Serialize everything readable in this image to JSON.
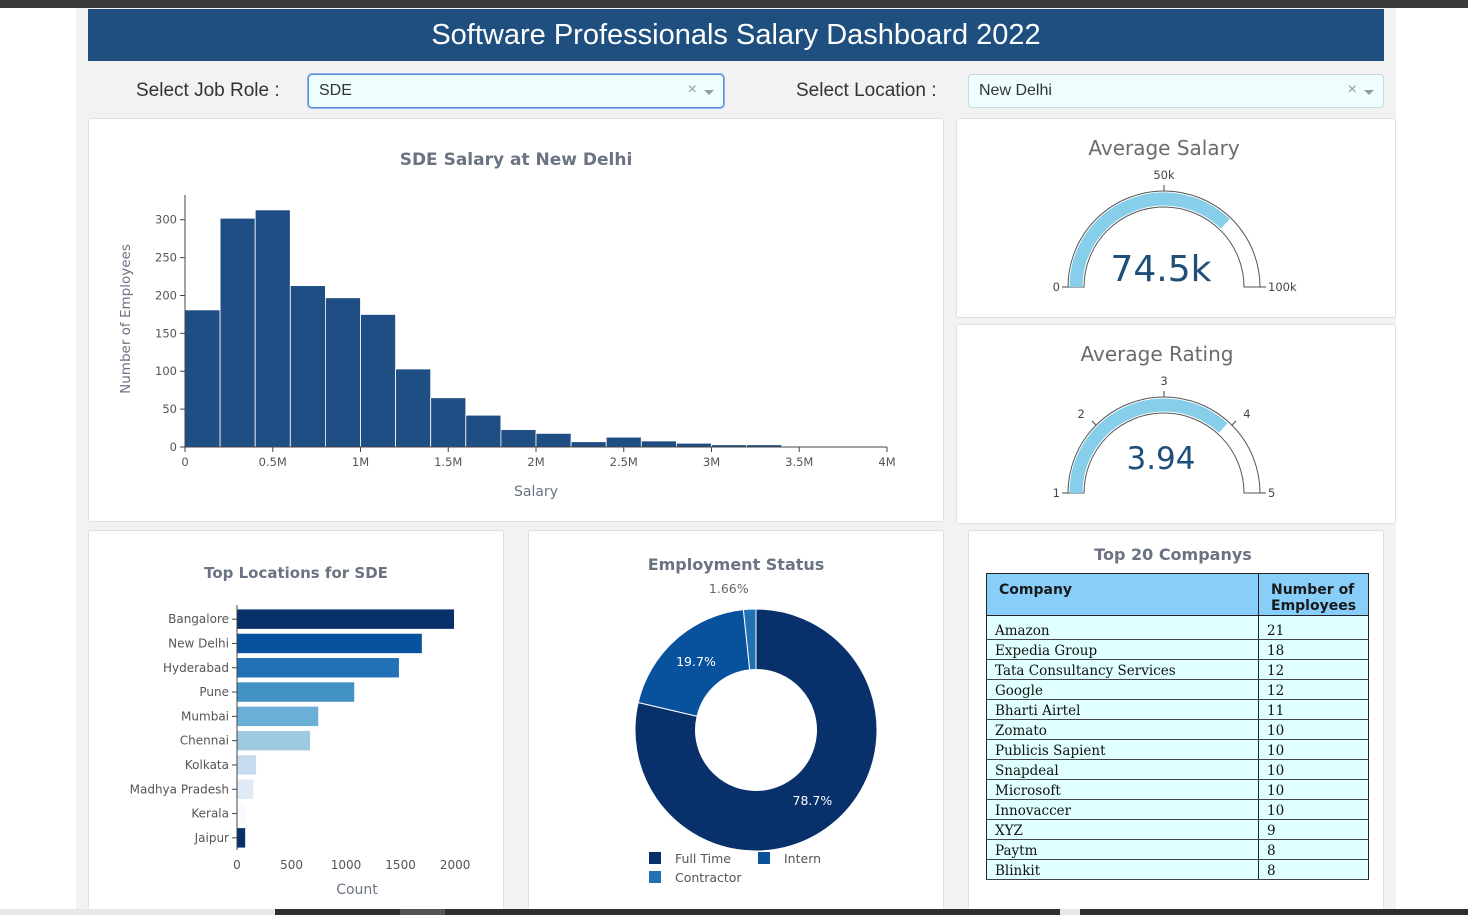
{
  "header": {
    "title": "Software Professionals Salary Dashboard 2022"
  },
  "filters": {
    "job_role_label": "Select Job Role :",
    "job_role_value": "SDE",
    "location_label": "Select Location :",
    "location_value": "New Delhi",
    "clear_symbol": "×"
  },
  "histogram": {
    "title": "SDE  Salary at  New Delhi",
    "xlabel": "Salary",
    "ylabel": "Number of Employees",
    "color": "#1f4e85"
  },
  "avg_salary": {
    "title": "Average Salary",
    "display": "74.5k",
    "value": 74500,
    "min": 0,
    "max": 100000,
    "tick_labels": {
      "min": "0",
      "mid": "50k",
      "max": "100k"
    },
    "bar_color": "#87ceeb"
  },
  "avg_rating": {
    "title": "Average Rating",
    "display": "3.94",
    "value": 3.94,
    "min": 1,
    "max": 5,
    "tick_labels": [
      "1",
      "2",
      "3",
      "4",
      "5"
    ],
    "bar_color": "#87ceeb"
  },
  "locations": {
    "title": "Top Locations for SDE",
    "xlabel": "Count"
  },
  "employment": {
    "title": "Employment Status"
  },
  "companies": {
    "title": "Top 20 Companys",
    "col1": "Company",
    "col2_line1": "Number of",
    "col2_line2": "Employees",
    "rows": [
      {
        "company": "Amazon",
        "count": "21"
      },
      {
        "company": "Expedia Group",
        "count": "18"
      },
      {
        "company": "Tata Consultancy Services",
        "count": "12"
      },
      {
        "company": "Google",
        "count": "12"
      },
      {
        "company": "Bharti Airtel",
        "count": "11"
      },
      {
        "company": "Zomato",
        "count": "10"
      },
      {
        "company": "Publicis Sapient",
        "count": "10"
      },
      {
        "company": "Snapdeal",
        "count": "10"
      },
      {
        "company": "Microsoft",
        "count": "10"
      },
      {
        "company": "Innovaccer",
        "count": "10"
      },
      {
        "company": "XYZ",
        "count": "9"
      },
      {
        "company": "Paytm",
        "count": "8"
      },
      {
        "company": "Blinkit",
        "count": "8"
      }
    ]
  },
  "chart_data": [
    {
      "type": "bar",
      "title": "SDE  Salary at  New Delhi",
      "xlabel": "Salary",
      "ylabel": "Number of Employees",
      "bin_width": 200000,
      "x": [
        100000,
        300000,
        500000,
        700000,
        900000,
        1100000,
        1300000,
        1500000,
        1700000,
        1900000,
        2100000,
        2300000,
        2500000,
        2700000,
        2900000,
        3100000,
        3300000,
        3500000,
        3700000,
        3900000
      ],
      "values": [
        181,
        302,
        313,
        213,
        197,
        175,
        103,
        65,
        42,
        23,
        18,
        7,
        13,
        8,
        5,
        3,
        3,
        1,
        1,
        1
      ],
      "xlim": [
        0,
        4000000
      ],
      "ylim": [
        0,
        330
      ],
      "x_ticks": [
        "0",
        "0.5M",
        "1M",
        "1.5M",
        "2M",
        "2.5M",
        "3M",
        "3.5M",
        "4M"
      ],
      "y_ticks": [
        0,
        50,
        100,
        150,
        200,
        250,
        300
      ]
    },
    {
      "type": "bar",
      "orientation": "horizontal",
      "title": "Top Locations for SDE",
      "xlabel": "Count",
      "categories": [
        "Bangalore",
        "New Delhi",
        "Hyderabad",
        "Pune",
        "Mumbai",
        "Chennai",
        "Kolkata",
        "Madhya Pradesh",
        "Kerala",
        "Jaipur"
      ],
      "values": [
        1990,
        1695,
        1485,
        1075,
        745,
        670,
        175,
        150,
        85,
        75
      ],
      "colors": [
        "#08306b",
        "#08519c",
        "#2171b5",
        "#4292c6",
        "#6baed6",
        "#9ecae1",
        "#c6dbef",
        "#deebf7",
        "#f7fbff",
        "#08306b"
      ],
      "xlim": [
        0,
        2100
      ],
      "x_ticks": [
        0,
        500,
        1000,
        1500,
        2000
      ]
    },
    {
      "type": "pie",
      "hole": 0.5,
      "title": "Employment Status",
      "labels": [
        "Full Time",
        "Intern",
        "Contractor"
      ],
      "values": [
        78.7,
        19.7,
        1.66
      ],
      "value_labels": [
        "78.7%",
        "19.7%",
        "1.66%"
      ],
      "colors": [
        "#08306b",
        "#08519c",
        "#2171b5"
      ],
      "legend": "bottom"
    }
  ]
}
